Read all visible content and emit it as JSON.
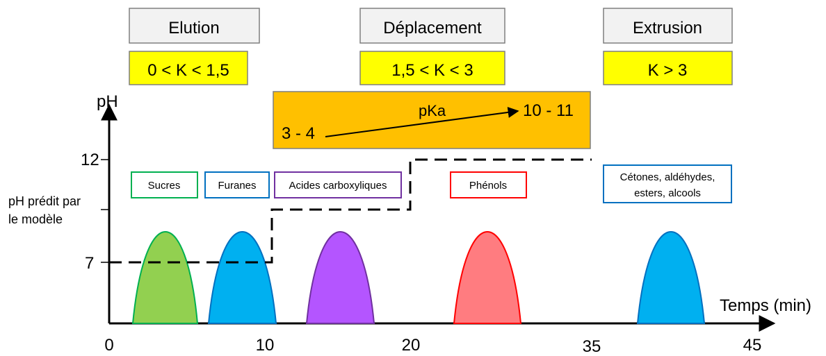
{
  "phases": [
    {
      "name": "Elution",
      "condition": "0 < K < 1,5"
    },
    {
      "name": "Déplacement",
      "condition": "1,5 < K < 3"
    },
    {
      "name": "Extrusion",
      "condition": "K > 3"
    }
  ],
  "pka_box": {
    "label": "pKa",
    "start": "3 - 4",
    "end": "10 - 11"
  },
  "axes": {
    "y_title": "pH",
    "x_title": "Temps (min)",
    "y_ticks": [
      "7",
      "12"
    ],
    "x_ticks": [
      "0",
      "10",
      "20",
      "35",
      "45"
    ],
    "y_side_note_line1": "pH prédit par",
    "y_side_note_line2": "le modèle"
  },
  "peaks": [
    {
      "label": "Sucres",
      "color": "#92D050",
      "stroke": "#00B050"
    },
    {
      "label": "Furanes",
      "color": "#00B0F0",
      "stroke": "#0070C0"
    },
    {
      "label": "Acides carboxyliques",
      "color": "#B455FF",
      "stroke": "#7030A0"
    },
    {
      "label": "Phénols",
      "color": "#FF7C80",
      "stroke": "#FF0000"
    },
    {
      "label_line1": "Cétones, aldéhydes,",
      "label_line2": "esters, alcools",
      "color": "#00B0F0",
      "stroke": "#0070C0"
    }
  ],
  "colors": {
    "phase_box": "#F2F2F2",
    "condition_box": "#FFFF00",
    "pka_box": "#FFC000"
  }
}
